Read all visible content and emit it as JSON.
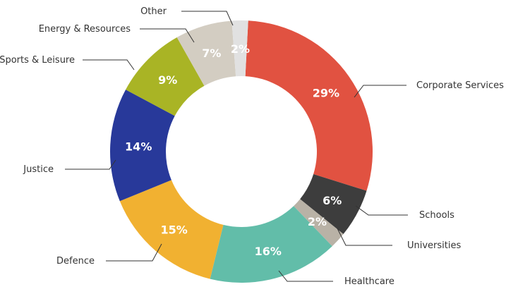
{
  "chart_data": {
    "type": "pie",
    "subtype": "donut",
    "slices": [
      {
        "label": "Corporate Services",
        "value": 29,
        "display": "29%",
        "color": "#e15241"
      },
      {
        "label": "Schools",
        "value": 6,
        "display": "6%",
        "color": "#3d3d3d"
      },
      {
        "label": "Universities",
        "value": 2,
        "display": "2%",
        "color": "#b9b2a6"
      },
      {
        "label": "Healthcare",
        "value": 16,
        "display": "16%",
        "color": "#62bda9"
      },
      {
        "label": "Defence",
        "value": 15,
        "display": "15%",
        "color": "#f1b131"
      },
      {
        "label": "Justice",
        "value": 14,
        "display": "14%",
        "color": "#28399a"
      },
      {
        "label": "Sports & Leisure",
        "value": 9,
        "display": "9%",
        "color": "#a9b425"
      },
      {
        "label": "Energy & Resources",
        "value": 7,
        "display": "7%",
        "color": "#d3cdc2"
      },
      {
        "label": "Other",
        "value": 2,
        "display": "2%",
        "color": "#e1e1e1"
      }
    ],
    "start_angle_deg": 3,
    "direction": "clockwise",
    "title": "",
    "legend": "none"
  }
}
